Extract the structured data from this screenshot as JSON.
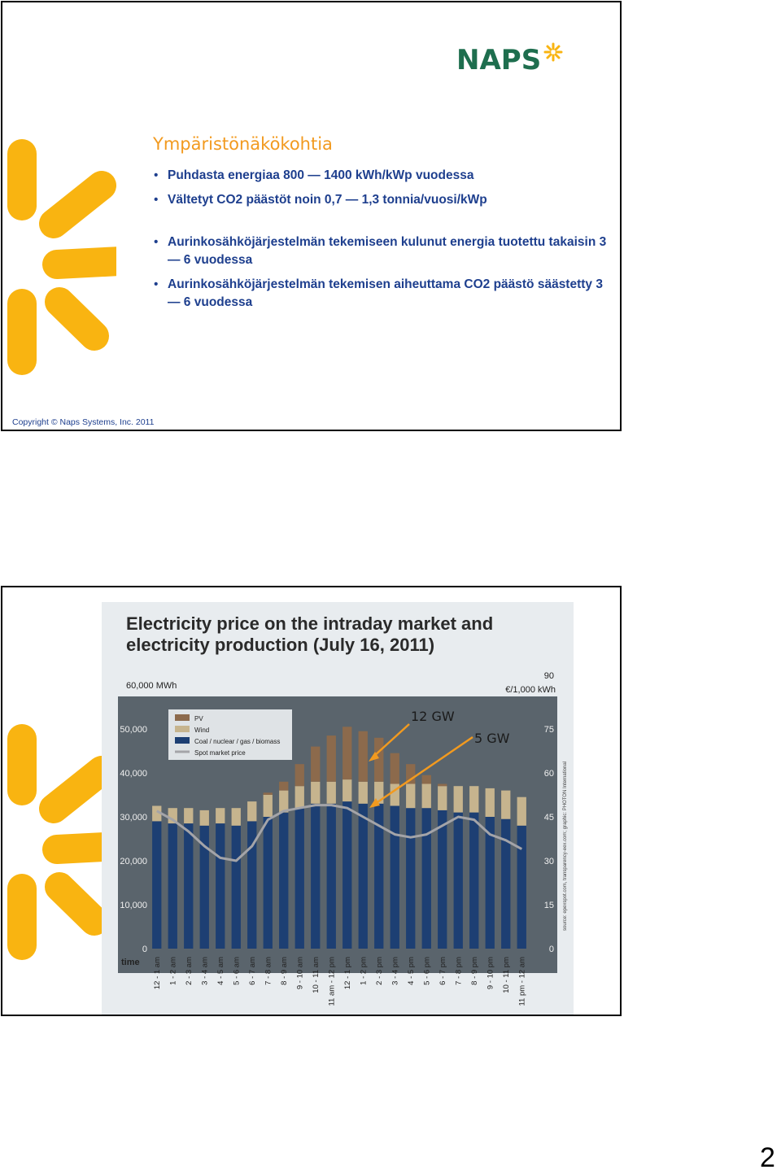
{
  "slide1": {
    "logo_text": "NAPS",
    "title": "Ympäristönäkökohtia",
    "bullets": [
      "Puhdasta energiaa 800 — 1400 kWh/kWp vuodessa",
      "Vältetyt CO2 päästöt noin 0,7 — 1,3 tonnia/vuosi/kWp",
      "Aurinkosähköjärjestelmän tekemiseen kulunut energia tuotettu takaisin 3 — 6 vuodessa",
      "Aurinkosähköjärjestelmän tekemisen aiheuttama CO2 päästö säästetty 3 — 6 vuodessa"
    ],
    "copyright": "Copyright © Naps Systems, Inc. 2011"
  },
  "slide2": {
    "chart_data": {
      "type": "bar",
      "title": "Electricity price on the intraday market and electricity production (July 16, 2011)",
      "title_lines": [
        "Electricity price on the intraday market and",
        "electricity production (July 16, 2011)"
      ],
      "ylabel_left": "60,000 MWh",
      "ylabel_right": "€/1,000 kWh",
      "xlabel": "time",
      "ylim": [
        0,
        60000
      ],
      "ylim_right": [
        0,
        90
      ],
      "yticks_left": [
        "0",
        "10,000",
        "20,000",
        "30,000",
        "40,000",
        "50,000"
      ],
      "yticks_right": [
        "0",
        "15",
        "30",
        "45",
        "60",
        "75",
        "90"
      ],
      "categories": [
        "12 - 1 am",
        "1 - 2 am",
        "2 - 3 am",
        "3 - 4 am",
        "4 - 5 am",
        "5 - 6 am",
        "6 - 7 am",
        "7 - 8 am",
        "8 - 9 am",
        "9 - 10 am",
        "10 - 11 am",
        "11 am - 12 pm",
        "12 - 1 pm",
        "1 - 2 pm",
        "2 - 3 pm",
        "3 - 4 pm",
        "4 - 5 pm",
        "5 - 6 pm",
        "6 - 7 pm",
        "7 - 8 pm",
        "8 - 9 pm",
        "9 - 10 pm",
        "10 - 11 pm",
        "11 pm - 12 am"
      ],
      "series": [
        {
          "name": "Coal / nuclear / gas / biomass",
          "color": "#1d3f73",
          "values": [
            29000,
            28500,
            28500,
            28000,
            28500,
            28000,
            29000,
            30000,
            31000,
            32000,
            33000,
            33000,
            33500,
            33000,
            33000,
            32500,
            32000,
            32000,
            31500,
            31000,
            31000,
            30000,
            29500,
            28000
          ]
        },
        {
          "name": "Wind",
          "color": "#c6b48e",
          "values": [
            3500,
            3500,
            3500,
            3500,
            3500,
            4000,
            4500,
            5000,
            5000,
            5000,
            5000,
            5000,
            5000,
            5000,
            5000,
            5000,
            5500,
            5500,
            5500,
            6000,
            6000,
            6500,
            6500,
            6500
          ]
        },
        {
          "name": "PV",
          "color": "#8c6a4c",
          "values": [
            0,
            0,
            0,
            0,
            0,
            0,
            0,
            500,
            2000,
            5000,
            8000,
            10500,
            12000,
            11500,
            10000,
            7000,
            4500,
            2000,
            500,
            0,
            0,
            0,
            0,
            0
          ]
        }
      ],
      "line_series": {
        "name": "Spot market price",
        "color": "#a4a4a8",
        "axis": "right",
        "values": [
          47,
          44,
          40,
          35,
          31,
          30,
          35,
          44,
          47,
          48,
          49,
          49,
          48,
          45,
          42,
          39,
          38,
          39,
          42,
          45,
          44,
          39,
          37,
          34
        ]
      },
      "legend_position": "top-left",
      "source_note": "source: epexspot.com, transparency-eex.com; graphic: PHOTON International"
    },
    "annotations": [
      "12 GW",
      "5 GW"
    ]
  },
  "page_number": "2"
}
